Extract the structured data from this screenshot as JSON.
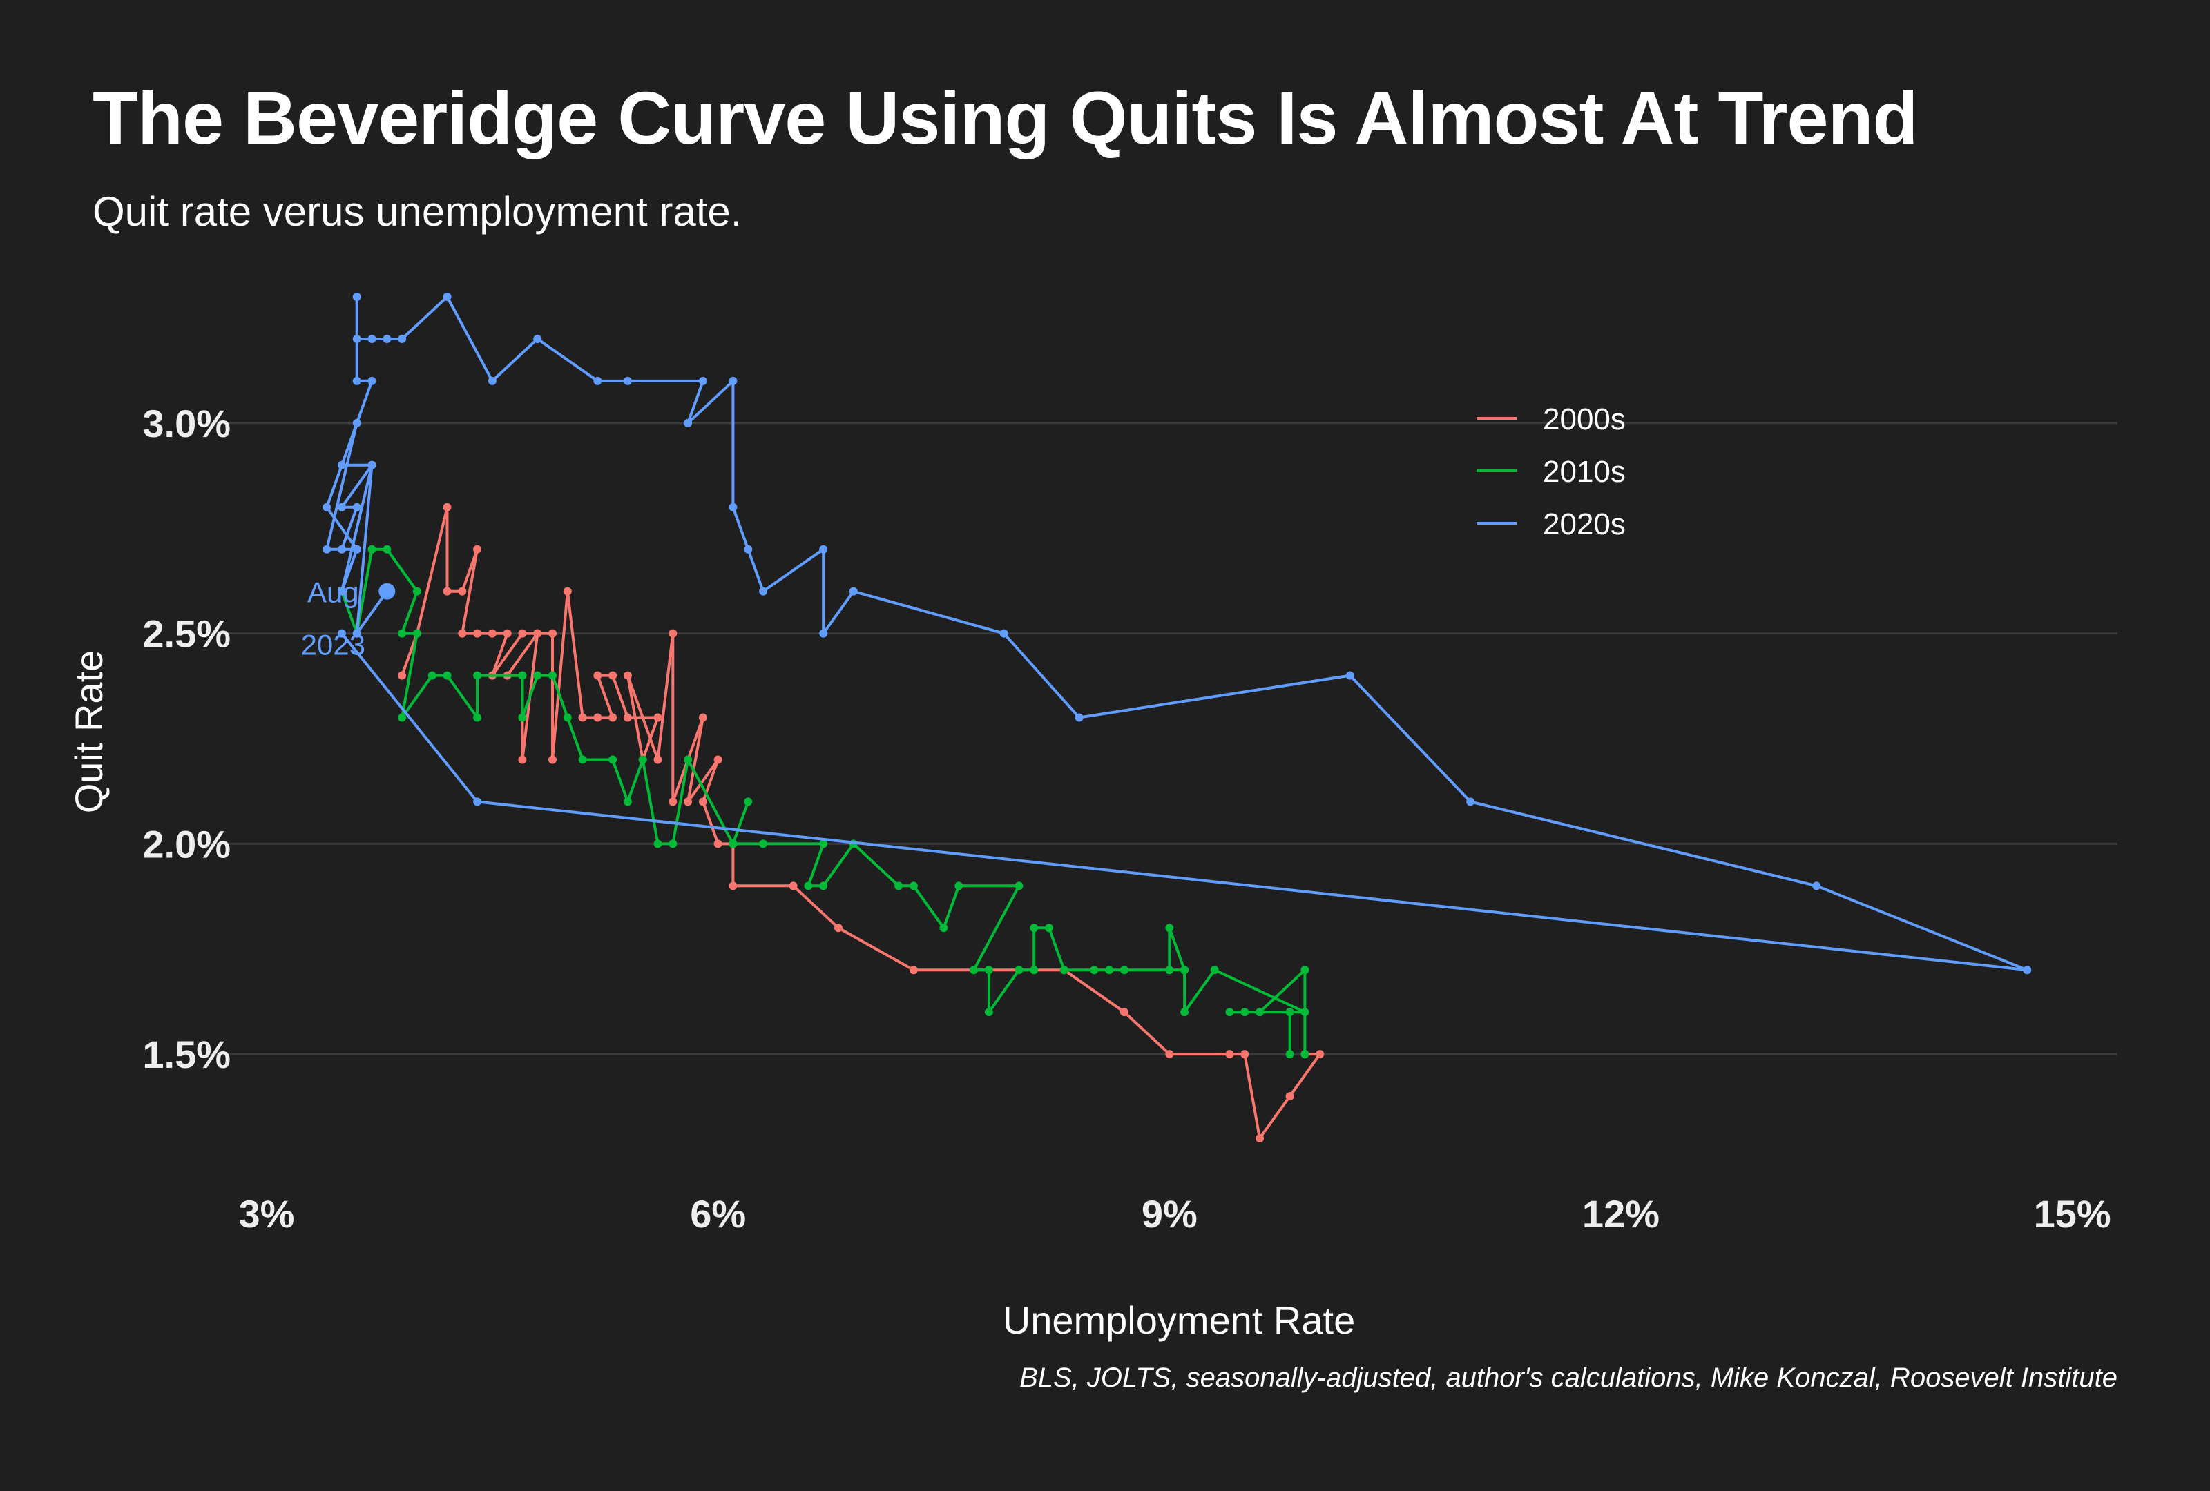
{
  "title": "The Beveridge Curve Using Quits Is Almost At Trend",
  "subtitle": "Quit rate verus unemployment rate.",
  "caption": "BLS, JOLTS, seasonally-adjusted, author's calculations, Mike Konczal, Roosevelt Institute",
  "colors": {
    "background": "#1f1f1f",
    "grid": "#3a3a3a",
    "s2000": "#f8766d",
    "s2010": "#00ba38",
    "s2020": "#619cff"
  },
  "chart_data": {
    "type": "line",
    "xlabel": "Unemployment Rate",
    "ylabel": "Quit Rate",
    "xlim": [
      3,
      15.3
    ],
    "ylim": [
      1.2,
      3.3
    ],
    "x_ticks": [
      {
        "value": 3,
        "label": "3%"
      },
      {
        "value": 6,
        "label": "6%"
      },
      {
        "value": 9,
        "label": "9%"
      },
      {
        "value": 12,
        "label": "12%"
      },
      {
        "value": 15,
        "label": "15%"
      }
    ],
    "y_ticks": [
      {
        "value": 1.5,
        "label": "1.5%"
      },
      {
        "value": 2.0,
        "label": "2.0%"
      },
      {
        "value": 2.5,
        "label": "2.5%"
      },
      {
        "value": 3.0,
        "label": "3.0%"
      }
    ],
    "grid": "horizontal",
    "legend_position": "top-right",
    "series": [
      {
        "name": "2000s",
        "color": "#f8766d",
        "points": [
          [
            3.9,
            2.4
          ],
          [
            4.0,
            2.5
          ],
          [
            4.2,
            2.8
          ],
          [
            4.2,
            2.6
          ],
          [
            4.3,
            2.6
          ],
          [
            4.4,
            2.7
          ],
          [
            4.3,
            2.5
          ],
          [
            4.4,
            2.5
          ],
          [
            4.5,
            2.5
          ],
          [
            4.6,
            2.5
          ],
          [
            4.5,
            2.4
          ],
          [
            4.7,
            2.5
          ],
          [
            4.8,
            2.5
          ],
          [
            4.6,
            2.4
          ],
          [
            4.7,
            2.4
          ],
          [
            4.7,
            2.2
          ],
          [
            4.8,
            2.5
          ],
          [
            4.9,
            2.5
          ],
          [
            4.9,
            2.2
          ],
          [
            5.0,
            2.6
          ],
          [
            5.1,
            2.3
          ],
          [
            5.2,
            2.3
          ],
          [
            5.3,
            2.3
          ],
          [
            5.2,
            2.4
          ],
          [
            5.3,
            2.4
          ],
          [
            5.4,
            2.3
          ],
          [
            5.6,
            2.3
          ],
          [
            5.5,
            2.2
          ],
          [
            5.4,
            2.4
          ],
          [
            5.6,
            2.2
          ],
          [
            5.7,
            2.5
          ],
          [
            5.7,
            2.1
          ],
          [
            5.8,
            2.2
          ],
          [
            5.9,
            2.3
          ],
          [
            5.8,
            2.1
          ],
          [
            6.0,
            2.2
          ],
          [
            5.9,
            2.1
          ],
          [
            6.0,
            2.0
          ],
          [
            6.1,
            2.0
          ],
          [
            6.1,
            1.9
          ],
          [
            6.5,
            1.9
          ],
          [
            6.8,
            1.8
          ],
          [
            7.3,
            1.7
          ],
          [
            8.3,
            1.7
          ],
          [
            8.7,
            1.6
          ],
          [
            9.0,
            1.5
          ],
          [
            9.4,
            1.5
          ],
          [
            9.5,
            1.5
          ],
          [
            9.6,
            1.3
          ],
          [
            9.8,
            1.4
          ],
          [
            10.0,
            1.5
          ],
          [
            9.9,
            1.5
          ]
        ]
      },
      {
        "name": "2010s",
        "color": "#00ba38",
        "points": [
          [
            9.9,
            1.5
          ],
          [
            9.9,
            1.7
          ],
          [
            9.6,
            1.6
          ],
          [
            9.4,
            1.6
          ],
          [
            9.5,
            1.6
          ],
          [
            9.6,
            1.6
          ],
          [
            9.8,
            1.6
          ],
          [
            9.8,
            1.5
          ],
          [
            9.8,
            1.6
          ],
          [
            9.9,
            1.6
          ],
          [
            9.3,
            1.7
          ],
          [
            9.1,
            1.6
          ],
          [
            9.1,
            1.7
          ],
          [
            9.0,
            1.8
          ],
          [
            9.0,
            1.7
          ],
          [
            9.1,
            1.7
          ],
          [
            8.7,
            1.7
          ],
          [
            8.6,
            1.7
          ],
          [
            8.5,
            1.7
          ],
          [
            8.3,
            1.7
          ],
          [
            8.2,
            1.8
          ],
          [
            8.1,
            1.8
          ],
          [
            8.1,
            1.7
          ],
          [
            8.0,
            1.7
          ],
          [
            7.8,
            1.6
          ],
          [
            7.8,
            1.7
          ],
          [
            7.7,
            1.7
          ],
          [
            8.0,
            1.9
          ],
          [
            7.6,
            1.9
          ],
          [
            7.5,
            1.8
          ],
          [
            7.3,
            1.9
          ],
          [
            7.2,
            1.9
          ],
          [
            6.9,
            2.0
          ],
          [
            6.7,
            1.9
          ],
          [
            6.6,
            1.9
          ],
          [
            6.7,
            2.0
          ],
          [
            6.3,
            2.0
          ],
          [
            6.1,
            2.0
          ],
          [
            6.2,
            2.1
          ],
          [
            6.1,
            2.0
          ],
          [
            5.8,
            2.2
          ],
          [
            5.7,
            2.0
          ],
          [
            5.6,
            2.0
          ],
          [
            5.5,
            2.2
          ],
          [
            5.4,
            2.1
          ],
          [
            5.3,
            2.2
          ],
          [
            5.1,
            2.2
          ],
          [
            5.0,
            2.3
          ],
          [
            4.9,
            2.4
          ],
          [
            4.8,
            2.4
          ],
          [
            4.7,
            2.3
          ],
          [
            4.7,
            2.4
          ],
          [
            4.4,
            2.4
          ],
          [
            4.4,
            2.3
          ],
          [
            4.2,
            2.4
          ],
          [
            4.1,
            2.4
          ],
          [
            3.9,
            2.3
          ],
          [
            4.0,
            2.5
          ],
          [
            3.9,
            2.5
          ],
          [
            4.0,
            2.6
          ],
          [
            3.8,
            2.7
          ],
          [
            3.7,
            2.7
          ],
          [
            3.6,
            2.5
          ],
          [
            3.5,
            2.6
          ]
        ]
      },
      {
        "name": "2020s",
        "color": "#619cff",
        "points": [
          [
            3.5,
            2.5
          ],
          [
            4.4,
            2.1
          ],
          [
            14.7,
            1.7
          ],
          [
            13.3,
            1.9
          ],
          [
            11.0,
            2.1
          ],
          [
            10.2,
            2.4
          ],
          [
            8.4,
            2.3
          ],
          [
            7.9,
            2.5
          ],
          [
            6.9,
            2.6
          ],
          [
            6.7,
            2.5
          ],
          [
            6.7,
            2.7
          ],
          [
            6.3,
            2.6
          ],
          [
            6.2,
            2.7
          ],
          [
            6.1,
            2.8
          ],
          [
            6.1,
            3.1
          ],
          [
            5.8,
            3.0
          ],
          [
            5.9,
            3.1
          ],
          [
            5.4,
            3.1
          ],
          [
            5.2,
            3.1
          ],
          [
            4.8,
            3.2
          ],
          [
            4.5,
            3.1
          ],
          [
            4.2,
            3.3
          ],
          [
            3.9,
            3.2
          ],
          [
            3.8,
            3.2
          ],
          [
            3.7,
            3.2
          ],
          [
            3.6,
            3.2
          ],
          [
            3.6,
            3.3
          ],
          [
            3.6,
            3.1
          ],
          [
            3.7,
            3.1
          ],
          [
            3.5,
            2.9
          ],
          [
            3.7,
            2.9
          ],
          [
            3.5,
            2.8
          ],
          [
            3.6,
            2.8
          ],
          [
            3.5,
            2.7
          ],
          [
            3.6,
            2.7
          ],
          [
            3.4,
            2.7
          ],
          [
            3.6,
            3.0
          ],
          [
            3.4,
            2.8
          ],
          [
            3.6,
            2.7
          ],
          [
            3.5,
            2.6
          ],
          [
            3.7,
            2.9
          ],
          [
            3.6,
            2.5
          ],
          [
            3.8,
            2.6
          ]
        ]
      }
    ],
    "annotation": {
      "text_line1": "Aug",
      "text_line2": "2023",
      "x": 3.8,
      "y": 2.6,
      "color": "#619cff"
    }
  }
}
